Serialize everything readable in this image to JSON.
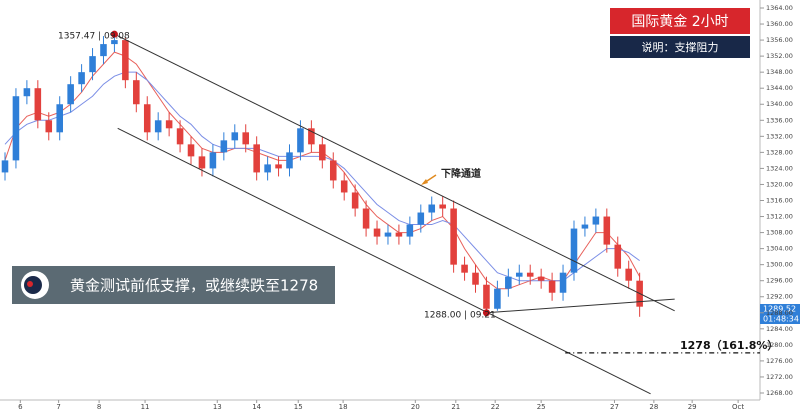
{
  "chart_data": {
    "type": "candlestick",
    "title": "国际黄金  2小时",
    "subtitle": "说明：支撑阻力",
    "headline": "黄金测试前低支撑，或继续跌至1278",
    "annotations": {
      "high_point": "1357.47 | 09.08",
      "low_point": "1288.00 | 09.21",
      "channel": "下降通道",
      "target": "1278（161.8%）",
      "last_price": "1289.52",
      "countdown": "01:48:34"
    },
    "up_color": "#2f7fd8",
    "down_color": "#e2403c",
    "x": [
      0,
      1,
      2,
      3,
      4,
      5,
      6,
      7,
      8,
      9,
      10,
      11,
      12,
      13,
      14,
      15,
      16,
      17,
      18,
      19,
      20,
      21,
      22,
      23,
      24,
      25,
      26,
      27,
      28,
      29,
      30,
      31,
      32,
      33,
      34,
      35,
      36,
      37,
      38,
      39,
      40,
      41,
      42,
      43,
      44,
      45,
      46,
      47,
      48,
      49,
      50,
      51,
      52,
      53,
      54,
      55,
      56,
      57,
      58
    ],
    "open": [
      1323,
      1326,
      1342,
      1344,
      1336,
      1333,
      1340,
      1345,
      1348,
      1352,
      1355,
      1356,
      1346,
      1340,
      1333,
      1336,
      1334,
      1330,
      1327,
      1324,
      1328,
      1331,
      1333,
      1330,
      1323,
      1325,
      1324,
      1328,
      1334,
      1330,
      1326,
      1321,
      1318,
      1314,
      1309,
      1307,
      1308,
      1307,
      1310,
      1313,
      1315,
      1314,
      1300,
      1298,
      1295,
      1289,
      1294,
      1297,
      1298,
      1297,
      1296,
      1293,
      1298,
      1309,
      1310,
      1312,
      1305,
      1299,
      1296
    ],
    "high": [
      1328,
      1344,
      1346,
      1346,
      1338,
      1342,
      1347,
      1350,
      1354,
      1357,
      1357.47,
      1356.5,
      1348,
      1342,
      1338,
      1338,
      1336,
      1332,
      1329,
      1330,
      1333,
      1335,
      1335,
      1332,
      1327,
      1327,
      1330,
      1336,
      1336,
      1332,
      1328,
      1323,
      1320,
      1316,
      1311,
      1310,
      1310,
      1312,
      1315,
      1317,
      1317,
      1316,
      1302,
      1300,
      1297,
      1296,
      1299,
      1300,
      1300,
      1299,
      1298,
      1300,
      1311,
      1312,
      1314,
      1314,
      1307,
      1301,
      1298
    ],
    "low": [
      1321,
      1324,
      1340,
      1334,
      1331,
      1331,
      1338,
      1343,
      1346,
      1350,
      1353,
      1344,
      1338,
      1331,
      1331,
      1332,
      1328,
      1325,
      1322,
      1322,
      1326,
      1329,
      1328,
      1321,
      1321,
      1322,
      1322,
      1326,
      1328,
      1324,
      1319,
      1316,
      1312,
      1307,
      1305,
      1305,
      1305,
      1305,
      1308,
      1311,
      1312,
      1298,
      1296,
      1293,
      1288,
      1288.5,
      1292,
      1295,
      1295,
      1294,
      1291,
      1291,
      1296,
      1307,
      1308,
      1303,
      1297,
      1294,
      1287
    ],
    "close": [
      1326,
      1342,
      1344,
      1336,
      1333,
      1340,
      1345,
      1348,
      1352,
      1355,
      1356,
      1346,
      1340,
      1333,
      1336,
      1334,
      1330,
      1327,
      1324,
      1328,
      1331,
      1333,
      1330,
      1323,
      1325,
      1324,
      1328,
      1334,
      1330,
      1326,
      1321,
      1318,
      1314,
      1309,
      1307,
      1308,
      1307,
      1310,
      1313,
      1315,
      1314,
      1300,
      1298,
      1295,
      1289,
      1294,
      1297,
      1298,
      1297,
      1296,
      1293,
      1298,
      1309,
      1310,
      1312,
      1305,
      1299,
      1296,
      1289.52
    ],
    "series": [
      {
        "color": "#e8605a",
        "values": [
          1326,
          1334,
          1337,
          1338,
          1337,
          1338,
          1340,
          1343,
          1347,
          1350,
          1353,
          1352,
          1350,
          1346,
          1342,
          1338,
          1335,
          1332,
          1329,
          1328,
          1328,
          1329,
          1329,
          1328,
          1327,
          1326,
          1326,
          1327,
          1328,
          1328,
          1326,
          1323,
          1319,
          1315,
          1312,
          1310,
          1308,
          1308,
          1309,
          1311,
          1312,
          1309,
          1304,
          1300,
          1296,
          1294,
          1294,
          1295,
          1296,
          1297,
          1296,
          1296,
          1300,
          1304,
          1308,
          1308,
          1305,
          1302,
          1297
        ]
      },
      {
        "color": "#7b8ee6",
        "values": [
          1330,
          1333,
          1335,
          1336,
          1336,
          1337,
          1338,
          1340,
          1342,
          1345,
          1347,
          1348,
          1348,
          1346,
          1343,
          1340,
          1337,
          1335,
          1332,
          1330,
          1329,
          1329,
          1329,
          1329,
          1328,
          1327,
          1327,
          1327,
          1327,
          1327,
          1326,
          1324,
          1321,
          1318,
          1315,
          1313,
          1311,
          1310,
          1310,
          1310,
          1311,
          1310,
          1307,
          1304,
          1301,
          1298,
          1297,
          1296,
          1296,
          1296,
          1296,
          1296,
          1298,
          1300,
          1302,
          1304,
          1304,
          1303,
          1301
        ]
      }
    ],
    "lines": [
      {
        "x": [
          10,
          61.2
        ],
        "y": [
          1357.47,
          1288.5
        ]
      },
      {
        "x": [
          10.3,
          59
        ],
        "y": [
          1334,
          1267.8
        ]
      },
      {
        "x": [
          44,
          61.2
        ],
        "y": [
          1288,
          1291.4
        ]
      }
    ],
    "target_line": {
      "x": [
        51.2,
        69
      ],
      "y": [
        1278,
        1278
      ]
    },
    "xlim": [
      0,
      69
    ],
    "ylim": [
      1267,
      1364
    ],
    "xticks": [
      {
        "value": 1.4,
        "label": "6"
      },
      {
        "value": 4.9,
        "label": "7"
      },
      {
        "value": 8.6,
        "label": "8"
      },
      {
        "value": 12.8,
        "label": "11"
      },
      {
        "value": 19.4,
        "label": "13"
      },
      {
        "value": 23,
        "label": "14"
      },
      {
        "value": 26.8,
        "label": "15"
      },
      {
        "value": 30.9,
        "label": "18"
      },
      {
        "value": 37.5,
        "label": "20"
      },
      {
        "value": 41.2,
        "label": "21"
      },
      {
        "value": 44.8,
        "label": "22"
      },
      {
        "value": 49,
        "label": "25"
      },
      {
        "value": 55.7,
        "label": "27"
      },
      {
        "value": 59.3,
        "label": "28"
      },
      {
        "value": 62.8,
        "label": "29"
      },
      {
        "value": 67,
        "label": "Oct"
      }
    ],
    "yticks": [
      {
        "value": 1364,
        "label": "1364.00"
      },
      {
        "value": 1360,
        "label": "1360.00"
      },
      {
        "value": 1356,
        "label": "1356.00"
      },
      {
        "value": 1352,
        "label": "1352.00"
      },
      {
        "value": 1348,
        "label": "1348.00"
      },
      {
        "value": 1344,
        "label": "1344.00"
      },
      {
        "value": 1340,
        "label": "1340.00"
      },
      {
        "value": 1336,
        "label": "1336.00"
      },
      {
        "value": 1332,
        "label": "1332.00"
      },
      {
        "value": 1328,
        "label": "1328.00"
      },
      {
        "value": 1324,
        "label": "1324.00"
      },
      {
        "value": 1320,
        "label": "1320.00"
      },
      {
        "value": 1316,
        "label": "1316.00"
      },
      {
        "value": 1312,
        "label": "1312.00"
      },
      {
        "value": 1308,
        "label": "1308.00"
      },
      {
        "value": 1304,
        "label": "1304.00"
      },
      {
        "value": 1300,
        "label": "1300.00"
      },
      {
        "value": 1296,
        "label": "1296.00"
      },
      {
        "value": 1292,
        "label": "1292.00"
      },
      {
        "value": 1288,
        "label": "1288.00"
      },
      {
        "value": 1284,
        "label": "1284.00"
      },
      {
        "value": 1280,
        "label": "1280.00"
      },
      {
        "value": 1276,
        "label": "1276.00"
      },
      {
        "value": 1272,
        "label": "1272.00"
      },
      {
        "value": 1268,
        "label": "1268.00"
      }
    ]
  }
}
